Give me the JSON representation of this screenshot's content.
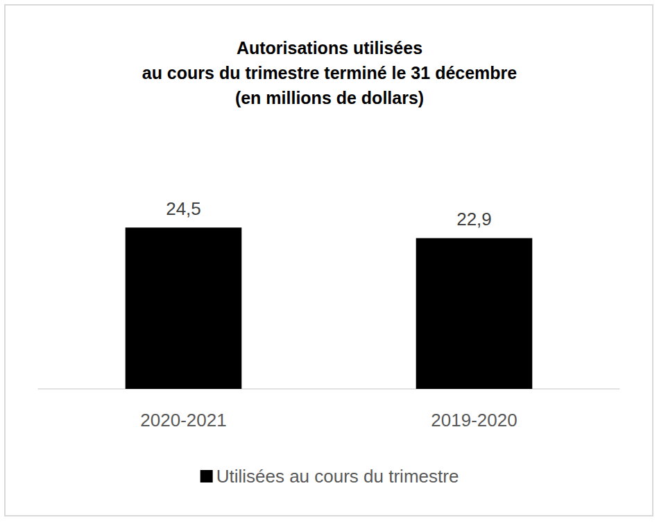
{
  "chart_data": {
    "type": "bar",
    "title": "Autorisations utilisées\nau cours du trimestre terminé le 31 décembre\n(en millions de dollars)",
    "categories": [
      "2020-2021",
      "2019-2020"
    ],
    "series": [
      {
        "name": "Utilisées au cours du trimestre",
        "color": "#000000",
        "values": [
          24.5,
          22.9
        ],
        "value_labels": [
          "24,5",
          "22,9"
        ]
      }
    ],
    "ylim": [
      0,
      30
    ],
    "yticks": [
      0,
      30
    ],
    "grid": false,
    "legend": "bottom",
    "data_labels": true,
    "tick_labels": "x"
  }
}
